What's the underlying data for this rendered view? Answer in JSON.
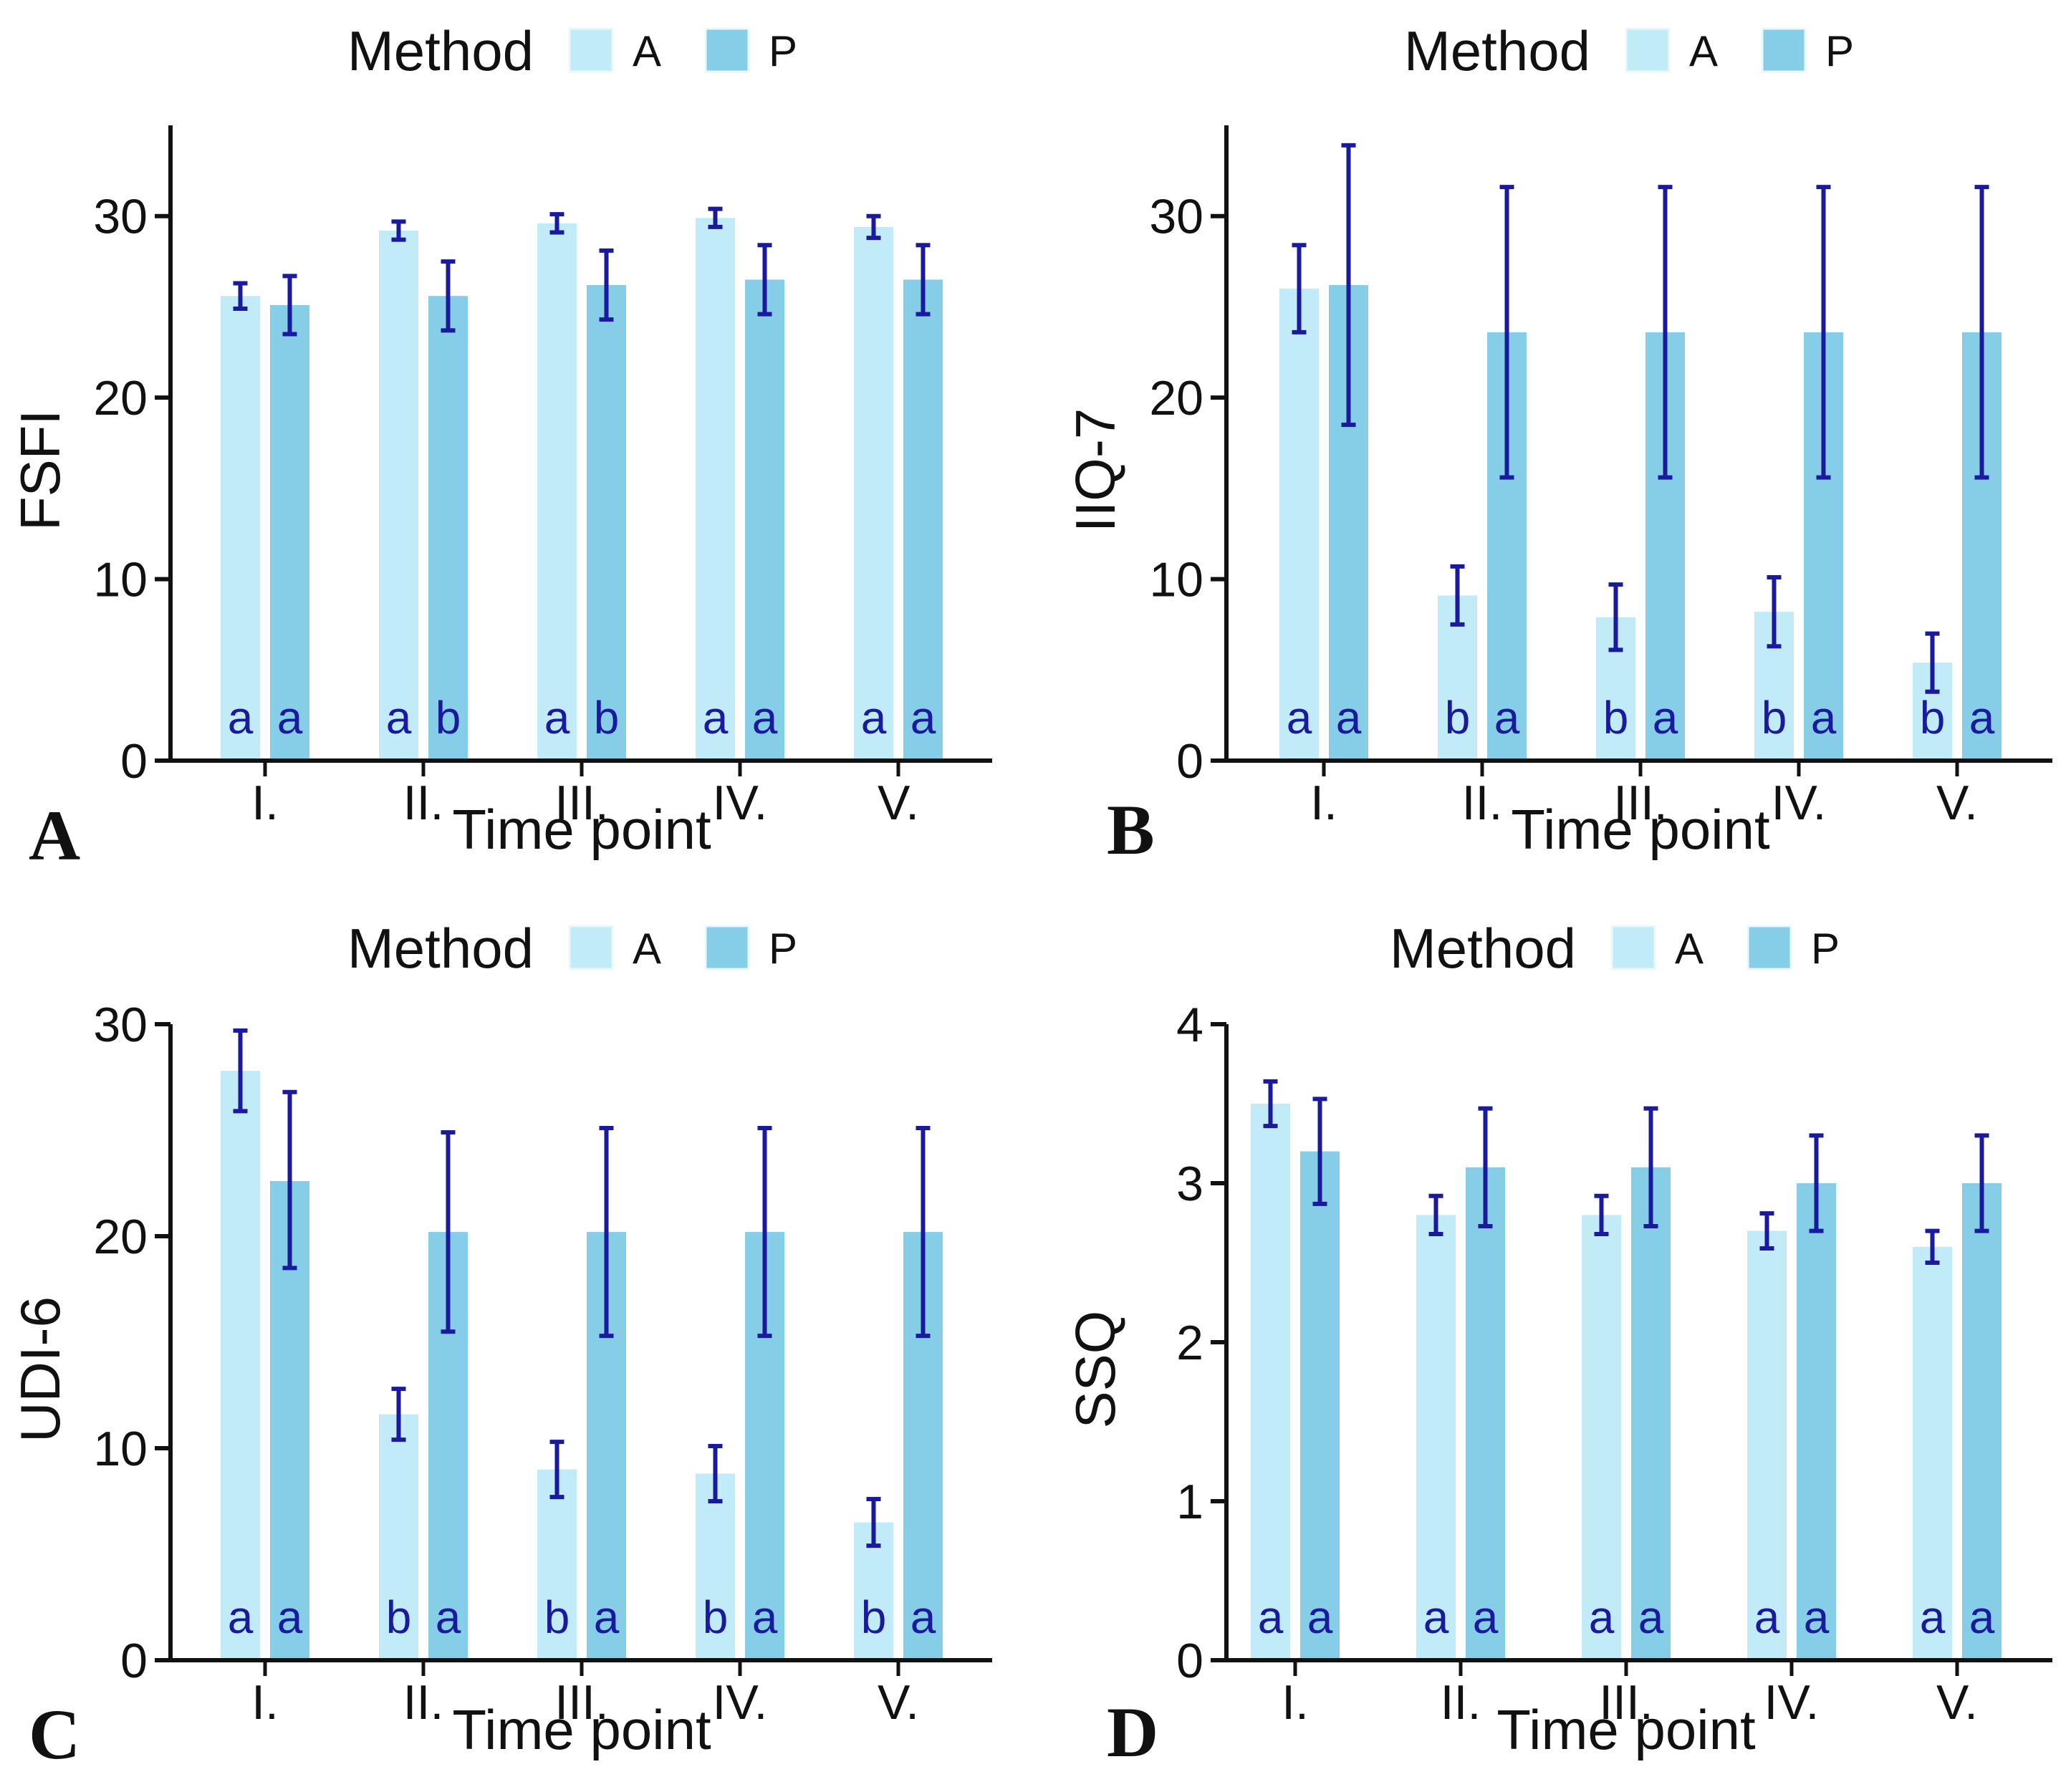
{
  "colors": {
    "A": "#c2ebf8",
    "P": "#86cde8",
    "error_bar": "#1a1a9e",
    "letters": "#1a1a9e",
    "axis": "#111111"
  },
  "chart_data": [
    {
      "panel": "A",
      "type": "bar",
      "legend": {
        "title": "Method",
        "entries": [
          "A",
          "P"
        ],
        "placement": "top-center"
      },
      "xlabel": "Time point",
      "ylabel": "FSFI",
      "categories": [
        "I.",
        "II.",
        "III.",
        "IV.",
        "V."
      ],
      "ylim": [
        0,
        35
      ],
      "yticks": [
        0,
        10,
        20,
        30
      ],
      "series": [
        {
          "name": "A",
          "values": [
            25.6,
            29.2,
            29.6,
            29.9,
            29.4
          ],
          "err_low": [
            24.9,
            28.7,
            29.1,
            29.4,
            28.8
          ],
          "err_high": [
            26.3,
            29.7,
            30.1,
            30.4,
            30.0
          ],
          "letters": [
            "a",
            "a",
            "a",
            "a",
            "a"
          ]
        },
        {
          "name": "P",
          "values": [
            25.1,
            25.6,
            26.2,
            26.5,
            26.5
          ],
          "err_low": [
            23.5,
            23.7,
            24.3,
            24.6,
            24.6
          ],
          "err_high": [
            26.7,
            27.5,
            28.1,
            28.4,
            28.4
          ],
          "letters": [
            "a",
            "b",
            "b",
            "a",
            "a"
          ]
        }
      ]
    },
    {
      "panel": "B",
      "type": "bar",
      "legend": {
        "title": "Method",
        "entries": [
          "A",
          "P"
        ],
        "placement": "top-center"
      },
      "xlabel": "Time point",
      "ylabel": "IIQ-7",
      "categories": [
        "I.",
        "II.",
        "III.",
        "IV.",
        "V."
      ],
      "ylim": [
        0,
        35
      ],
      "yticks": [
        0,
        10,
        20,
        30
      ],
      "series": [
        {
          "name": "A",
          "values": [
            26.0,
            9.1,
            7.9,
            8.2,
            5.4
          ],
          "err_low": [
            23.6,
            7.5,
            6.1,
            6.3,
            3.8
          ],
          "err_high": [
            28.4,
            10.7,
            9.7,
            10.1,
            7.0
          ],
          "letters": [
            "a",
            "b",
            "b",
            "b",
            "b"
          ]
        },
        {
          "name": "P",
          "values": [
            26.2,
            23.6,
            23.6,
            23.6,
            23.6
          ],
          "err_low": [
            18.5,
            15.6,
            15.6,
            15.6,
            15.6
          ],
          "err_high": [
            33.9,
            31.6,
            31.6,
            31.6,
            31.6
          ],
          "letters": [
            "a",
            "a",
            "a",
            "a",
            "a"
          ]
        }
      ]
    },
    {
      "panel": "C",
      "type": "bar",
      "legend": {
        "title": "Method",
        "entries": [
          "A",
          "P"
        ],
        "placement": "top-center"
      },
      "xlabel": "Time point",
      "ylabel": "UDI-6",
      "categories": [
        "I.",
        "II.",
        "III.",
        "IV.",
        "V."
      ],
      "ylim": [
        0,
        30
      ],
      "yticks": [
        0,
        10,
        20,
        30
      ],
      "series": [
        {
          "name": "A",
          "values": [
            27.8,
            11.6,
            9.0,
            8.8,
            6.5
          ],
          "err_low": [
            25.9,
            10.4,
            7.7,
            7.5,
            5.4
          ],
          "err_high": [
            29.7,
            12.8,
            10.3,
            10.1,
            7.6
          ],
          "letters": [
            "a",
            "b",
            "b",
            "b",
            "b"
          ]
        },
        {
          "name": "P",
          "values": [
            22.6,
            20.2,
            20.2,
            20.2,
            20.2
          ],
          "err_low": [
            18.5,
            15.5,
            15.3,
            15.3,
            15.3
          ],
          "err_high": [
            26.8,
            24.9,
            25.1,
            25.1,
            25.1
          ],
          "letters": [
            "a",
            "a",
            "a",
            "a",
            "a"
          ]
        }
      ]
    },
    {
      "panel": "D",
      "type": "bar",
      "legend": {
        "title": "Method",
        "entries": [
          "A",
          "P"
        ],
        "placement": "top-center"
      },
      "xlabel": "Time point",
      "ylabel": "SSQ",
      "categories": [
        "I.",
        "II.",
        "III.",
        "IV.",
        "V."
      ],
      "ylim": [
        0,
        4
      ],
      "yticks": [
        0,
        1,
        2,
        3,
        4
      ],
      "series": [
        {
          "name": "A",
          "values": [
            3.5,
            2.8,
            2.8,
            2.7,
            2.6
          ],
          "err_low": [
            3.36,
            2.68,
            2.68,
            2.59,
            2.5
          ],
          "err_high": [
            3.64,
            2.92,
            2.92,
            2.81,
            2.7
          ],
          "letters": [
            "a",
            "a",
            "a",
            "a",
            "a"
          ]
        },
        {
          "name": "P",
          "values": [
            3.2,
            3.1,
            3.1,
            3.0,
            3.0
          ],
          "err_low": [
            2.87,
            2.73,
            2.73,
            2.7,
            2.7
          ],
          "err_high": [
            3.53,
            3.47,
            3.47,
            3.3,
            3.3
          ],
          "letters": [
            "a",
            "a",
            "a",
            "a",
            "a"
          ]
        }
      ]
    }
  ]
}
